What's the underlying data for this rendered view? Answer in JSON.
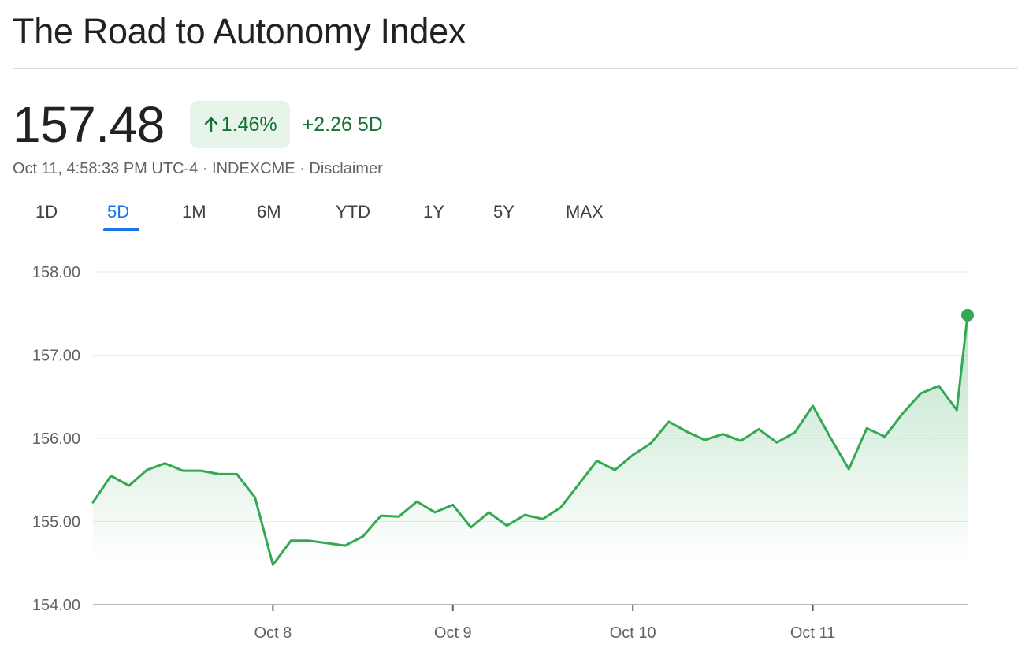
{
  "header": {
    "title": "The Road to Autonomy Index"
  },
  "quote": {
    "price": "157.48",
    "percent_change": "1.46%",
    "abs_change": "+2.26 5D",
    "trend_icon": "arrow-up-icon",
    "meta": "Oct 11, 4:58:33 PM UTC-4 · INDEXCME · Disclaimer"
  },
  "tabs": [
    {
      "label": "1D",
      "active": false
    },
    {
      "label": "5D",
      "active": true
    },
    {
      "label": "1M",
      "active": false
    },
    {
      "label": "6M",
      "active": false
    },
    {
      "label": "YTD",
      "active": false
    },
    {
      "label": "1Y",
      "active": false
    },
    {
      "label": "5Y",
      "active": false
    },
    {
      "label": "MAX",
      "active": false
    }
  ],
  "colors": {
    "positive": "#137333",
    "line": "#34a853",
    "badge_bg": "#e6f4ea",
    "tab_active": "#1a73e8"
  },
  "chart_data": {
    "type": "area",
    "title": "",
    "xlabel": "",
    "ylabel": "",
    "ylim": [
      154,
      158
    ],
    "yticks": [
      158,
      157,
      156,
      155,
      154
    ],
    "ytick_labels": [
      "158.00",
      "157.00",
      "156.00",
      "155.00",
      "154.00"
    ],
    "xlim": [
      0,
      48.6
    ],
    "xticks": [
      10,
      20,
      30,
      40
    ],
    "xtick_labels": [
      "Oct 8",
      "Oct 9",
      "Oct 10",
      "Oct 11"
    ],
    "grid": true,
    "x": [
      0,
      1,
      2,
      3,
      4,
      5,
      6,
      7,
      8,
      9,
      10,
      11,
      12,
      13,
      14,
      15,
      16,
      17,
      18,
      19,
      20,
      21,
      22,
      23,
      24,
      25,
      26,
      27,
      28,
      29,
      30,
      31,
      32,
      33,
      34,
      35,
      36,
      37,
      38,
      39,
      40,
      41,
      42,
      43,
      44,
      45,
      46,
      47,
      48,
      48.6
    ],
    "values": [
      155.23,
      155.55,
      155.43,
      155.62,
      155.7,
      155.61,
      155.61,
      155.57,
      155.57,
      155.29,
      154.48,
      154.77,
      154.77,
      154.74,
      154.71,
      154.82,
      155.07,
      155.06,
      155.24,
      155.11,
      155.2,
      154.93,
      155.11,
      154.95,
      155.08,
      155.03,
      155.17,
      155.45,
      155.73,
      155.62,
      155.8,
      155.94,
      156.2,
      156.08,
      155.98,
      156.05,
      155.97,
      156.11,
      155.95,
      156.07,
      156.39,
      156.0,
      155.63,
      156.12,
      156.02,
      156.3,
      156.54,
      156.63,
      156.34,
      157.48
    ],
    "last_value": 157.48
  }
}
